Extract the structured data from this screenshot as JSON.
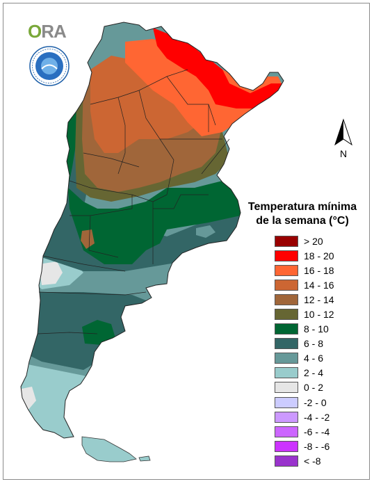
{
  "logo": {
    "first_letter": "O",
    "rest": "RA",
    "seal_text": "SERVICIO METEOROLOGICO NACIONAL · ARGENTINA"
  },
  "north_arrow": {
    "label": "N"
  },
  "legend": {
    "title_line1": "Temperatura mínima",
    "title_line2": "de la semana (°C)",
    "classes": [
      {
        "label": "> 20",
        "color": "#990000"
      },
      {
        "label": "18 - 20",
        "color": "#ff0000"
      },
      {
        "label": "16 - 18",
        "color": "#ff6633"
      },
      {
        "label": "14 - 16",
        "color": "#cc6633"
      },
      {
        "label": "12 - 14",
        "color": "#a0663a"
      },
      {
        "label": "10 - 12",
        "color": "#666633"
      },
      {
        "label": "8 - 10",
        "color": "#006633"
      },
      {
        "label": "6 - 8",
        "color": "#336666"
      },
      {
        "label": "4 - 6",
        "color": "#669999"
      },
      {
        "label": "2 - 4",
        "color": "#99cccc"
      },
      {
        "label": "0 - 2",
        "color": "#e6e6e6"
      },
      {
        "label": "-2 - 0",
        "color": "#ccccff"
      },
      {
        "label": "-4 - -2",
        "color": "#cc99ff"
      },
      {
        "label": "-6 - -4",
        "color": "#cc66ff"
      },
      {
        "label": "-8 - -6",
        "color": "#cc33ff"
      },
      {
        "label": "< -8",
        "color": "#9933cc"
      }
    ]
  }
}
